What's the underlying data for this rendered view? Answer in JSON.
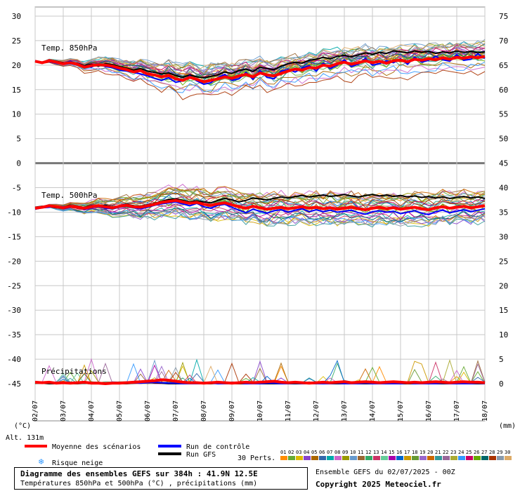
{
  "chart_data": {
    "type": "line",
    "title": "Diagramme des ensembles GEFS sur 384h : 41.9N 12.5E",
    "subtitle": "Températures 850hPa et 500hPa (°C) , précipitations (mm)",
    "run_info": "Ensemble GEFS du 02/07/2025 - 00Z",
    "copyright": "Copyright 2025 Meteociel.fr",
    "altitude": "Alt. 131m",
    "left_axis": {
      "unit": "(°C)",
      "ticks": [
        30,
        25,
        20,
        15,
        10,
        5,
        0,
        -5,
        -10,
        -15,
        -20,
        -25,
        -30,
        -35,
        -40,
        -45
      ],
      "ylim": [
        -45,
        30
      ]
    },
    "right_axis": {
      "unit": "(mm)",
      "ticks": [
        75,
        70,
        65,
        60,
        55,
        50,
        45,
        40,
        35,
        30,
        25,
        20,
        15,
        10,
        5,
        0
      ],
      "ylim": [
        0,
        75
      ]
    },
    "x_ticks": [
      "02/07",
      "03/07",
      "04/07",
      "05/07",
      "06/07",
      "07/07",
      "08/07",
      "09/07",
      "10/07",
      "11/07",
      "12/07",
      "13/07",
      "14/07",
      "15/07",
      "16/07",
      "17/07",
      "18/07"
    ],
    "panels": [
      {
        "label": "Temp. 850hPa",
        "mean": [
          20.8,
          20.5,
          20.9,
          20.6,
          20.3,
          20.5,
          20.2,
          19.6,
          19.9,
          20.1,
          20.0,
          19.8,
          19.4,
          19.1,
          18.6,
          18.9,
          18.2,
          18.0,
          17.6,
          17.9,
          17.2,
          16.9,
          17.5,
          17.1,
          16.6,
          16.9,
          17.2,
          17.6,
          17.3,
          17.8,
          18.1,
          17.6,
          18.4,
          18.0,
          17.8,
          18.3,
          18.8,
          19.2,
          19.0,
          19.5,
          19.4,
          20.0,
          19.8,
          20.3,
          20.6,
          20.2,
          20.5,
          20.9,
          20.5,
          20.8,
          20.4,
          20.9,
          21.0,
          20.7,
          21.2,
          21.0,
          21.3,
          21.1,
          21.5,
          21.2,
          21.6,
          21.4,
          21.7,
          21.5,
          21.8
        ],
        "control": [
          20.9,
          20.6,
          20.7,
          20.4,
          20.2,
          20.8,
          20.0,
          19.8,
          19.6,
          20.3,
          19.7,
          19.5,
          19.0,
          18.8,
          18.5,
          18.2,
          17.8,
          17.3,
          16.9,
          17.4,
          16.5,
          16.8,
          17.8,
          16.8,
          16.1,
          16.4,
          17.4,
          18.1,
          16.9,
          17.2,
          18.5,
          17.1,
          18.9,
          17.5,
          17.2,
          18.8,
          19.1,
          18.6,
          19.4,
          19.9,
          18.8,
          20.4,
          19.3,
          20.0,
          21.1,
          19.7,
          20.2,
          21.4,
          20.0,
          20.3,
          20.9,
          20.5,
          21.3,
          20.2,
          21.6,
          20.6,
          21.0,
          21.8,
          21.1,
          20.8,
          22.1,
          21.0,
          21.2,
          22.3,
          21.4
        ],
        "gfs": [
          20.7,
          20.4,
          21.0,
          20.8,
          20.5,
          20.3,
          20.4,
          19.9,
          20.2,
          19.8,
          20.3,
          20.1,
          19.7,
          19.4,
          19.0,
          19.3,
          18.8,
          18.5,
          18.2,
          18.4,
          17.9,
          17.5,
          18.0,
          17.6,
          17.4,
          17.7,
          18.0,
          18.6,
          18.3,
          18.9,
          19.2,
          18.7,
          19.6,
          19.3,
          19.1,
          19.8,
          20.3,
          20.6,
          20.4,
          21.0,
          21.2,
          21.6,
          21.3,
          21.8,
          22.0,
          21.7,
          22.1,
          22.5,
          22.2,
          22.6,
          22.4,
          22.9,
          22.7,
          22.5,
          22.9,
          22.6,
          22.8,
          22.4,
          22.7,
          22.5,
          22.9,
          22.6,
          22.8,
          22.5,
          22.7
        ]
      },
      {
        "label": "Temp. 500hPa",
        "mean": [
          -9.2,
          -9.0,
          -8.7,
          -8.9,
          -9.1,
          -8.8,
          -9.0,
          -9.2,
          -8.9,
          -8.7,
          -8.9,
          -9.1,
          -8.8,
          -8.6,
          -8.9,
          -9.0,
          -8.7,
          -8.4,
          -8.0,
          -7.8,
          -7.6,
          -7.9,
          -8.2,
          -8.0,
          -8.4,
          -8.6,
          -8.3,
          -8.1,
          -8.5,
          -8.9,
          -9.2,
          -8.8,
          -9.1,
          -9.4,
          -9.2,
          -9.0,
          -9.3,
          -9.1,
          -8.9,
          -9.2,
          -9.0,
          -9.3,
          -9.1,
          -9.4,
          -9.2,
          -9.0,
          -9.3,
          -9.5,
          -9.2,
          -9.0,
          -9.3,
          -9.1,
          -9.4,
          -9.2,
          -9.0,
          -9.3,
          -9.5,
          -9.1,
          -8.9,
          -9.2,
          -9.0,
          -8.8,
          -9.1,
          -8.9,
          -8.7
        ],
        "control": [
          -9.4,
          -9.1,
          -9.0,
          -8.8,
          -9.3,
          -9.0,
          -8.9,
          -9.4,
          -9.1,
          -8.9,
          -9.2,
          -9.3,
          -9.0,
          -8.8,
          -9.1,
          -9.3,
          -9.0,
          -8.6,
          -8.3,
          -8.1,
          -7.9,
          -8.3,
          -8.7,
          -8.2,
          -8.9,
          -9.2,
          -8.6,
          -8.4,
          -9.0,
          -9.6,
          -10.1,
          -9.4,
          -9.8,
          -10.2,
          -9.7,
          -9.5,
          -10.0,
          -9.6,
          -9.3,
          -9.9,
          -9.5,
          -9.9,
          -9.6,
          -10.0,
          -9.8,
          -9.6,
          -10.1,
          -10.4,
          -9.9,
          -9.7,
          -10.0,
          -9.8,
          -10.3,
          -10.0,
          -9.7,
          -10.2,
          -10.5,
          -9.9,
          -9.6,
          -10.1,
          -9.8,
          -9.5,
          -9.9,
          -9.6,
          -9.3
        ],
        "gfs": [
          -9.0,
          -8.8,
          -8.9,
          -9.1,
          -9.0,
          -8.6,
          -9.2,
          -9.0,
          -8.7,
          -8.8,
          -8.6,
          -9.0,
          -8.7,
          -8.4,
          -8.7,
          -8.8,
          -8.5,
          -8.2,
          -7.8,
          -7.4,
          -7.3,
          -7.6,
          -7.9,
          -7.7,
          -7.9,
          -8.1,
          -7.6,
          -7.2,
          -7.5,
          -7.9,
          -7.6,
          -7.1,
          -7.3,
          -7.5,
          -7.2,
          -6.9,
          -7.1,
          -6.8,
          -6.6,
          -6.9,
          -6.7,
          -6.5,
          -6.8,
          -6.6,
          -6.4,
          -6.7,
          -6.9,
          -6.6,
          -6.4,
          -6.7,
          -6.5,
          -6.8,
          -6.6,
          -6.9,
          -6.7,
          -7.0,
          -6.8,
          -7.1,
          -6.9,
          -7.2,
          -7.0,
          -6.8,
          -7.1,
          -6.9,
          -7.2
        ]
      },
      {
        "label": "Précipitations",
        "mean": [
          0.3,
          0.2,
          0.3,
          0.1,
          0.2,
          0.1,
          0.2,
          0.3,
          0.1,
          0.1,
          0.0,
          0.1,
          0.1,
          0.2,
          0.3,
          0.4,
          0.5,
          0.6,
          0.8,
          0.7,
          0.5,
          0.3,
          0.2,
          0.2,
          0.1,
          0.2,
          0.3,
          0.2,
          0.1,
          0.2,
          0.3,
          0.2,
          0.3,
          0.4,
          0.5,
          0.3,
          0.2,
          0.3,
          0.2,
          0.1,
          0.2,
          0.3,
          0.2,
          0.3,
          0.4,
          0.2,
          0.3,
          0.4,
          0.3,
          0.2,
          0.3,
          0.4,
          0.3,
          0.2,
          0.3,
          0.2,
          0.3,
          0.4,
          0.3,
          0.2,
          0.3,
          0.4,
          0.3,
          0.3,
          0.2
        ],
        "control": [
          0.2,
          0.1,
          0.2,
          0.0,
          0.1,
          0.0,
          0.1,
          0.2,
          0.0,
          0.0,
          0.0,
          0.0,
          0.0,
          0.1,
          0.2,
          0.1,
          0.2,
          0.3,
          0.2,
          0.1,
          0.1,
          0.0,
          0.0,
          0.0,
          0.0,
          0.1,
          0.0,
          0.0,
          0.0,
          0.1,
          0.0,
          0.0,
          0.0,
          0.1,
          0.1,
          0.0,
          0.0,
          0.1,
          0.0,
          0.0,
          0.0,
          0.0,
          0.0,
          0.1,
          0.0,
          0.0,
          0.0,
          0.1,
          0.0,
          0.0,
          0.0,
          0.0,
          0.0,
          0.1,
          0.0,
          0.0,
          0.0,
          0.0,
          0.1,
          0.0,
          0.0,
          0.0,
          0.0,
          0.1,
          0.0
        ],
        "gfs": [
          0.1,
          0.1,
          0.0,
          0.0,
          0.1,
          0.0,
          0.0,
          0.1,
          0.0,
          0.0,
          0.0,
          0.0,
          0.0,
          0.0,
          0.1,
          0.2,
          0.3,
          0.2,
          0.1,
          0.0,
          0.0,
          0.0,
          0.0,
          0.0,
          0.0,
          0.0,
          0.1,
          0.0,
          0.0,
          0.0,
          0.0,
          0.0,
          0.0,
          0.0,
          0.0,
          0.0,
          0.0,
          0.0,
          0.0,
          0.0,
          0.0,
          0.0,
          0.0,
          0.0,
          0.0,
          0.0,
          0.0,
          0.0,
          0.0,
          0.0,
          0.0,
          0.0,
          0.0,
          0.0,
          0.0,
          0.0,
          0.0,
          0.0,
          0.0,
          0.0,
          0.0,
          0.0,
          0.0,
          0.0,
          0.0
        ]
      }
    ],
    "members_count": 30,
    "legend": {
      "mean": "Moyenne des scénarios",
      "control": "Run de contrôle",
      "gfs": "Run GFS",
      "snow": "Risque neige",
      "perts": "30 Perts."
    },
    "colors": {
      "mean": "#ff0000",
      "control": "#0000ff",
      "gfs": "#000000",
      "grid": "#c0c0c0",
      "members": [
        "#ff8c00",
        "#66aa33",
        "#ddbb00",
        "#8844cc",
        "#aa6600",
        "#3366aa",
        "#00aaaa",
        "#cc66cc",
        "#999900",
        "#6699cc",
        "#996633",
        "#33aa66",
        "#cc3366",
        "#66cc99",
        "#aa00aa",
        "#0066cc",
        "#cc9900",
        "#669933",
        "#9966cc",
        "#cc6600",
        "#339999",
        "#996699",
        "#aaaa33",
        "#3399ff",
        "#cc0066",
        "#66aa00",
        "#006666",
        "#aa3300",
        "#8899aa",
        "#ddaa66"
      ]
    },
    "member_labels": [
      "01",
      "02",
      "03",
      "04",
      "05",
      "06",
      "07",
      "08",
      "09",
      "10",
      "11",
      "12",
      "13",
      "14",
      "15",
      "16",
      "17",
      "18",
      "19",
      "20",
      "21",
      "22",
      "23",
      "24",
      "25",
      "26",
      "27",
      "28",
      "29",
      "30"
    ]
  }
}
